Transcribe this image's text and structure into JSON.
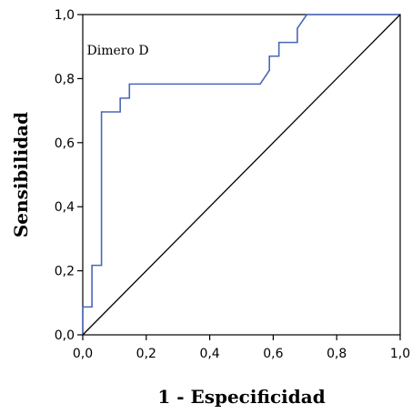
{
  "chart_data": {
    "type": "line",
    "title": "",
    "xlabel": "1 - Especificidad",
    "ylabel": "Sensibilidad",
    "xlim": [
      0,
      1
    ],
    "ylim": [
      0,
      1
    ],
    "x_ticks": [
      "0,0",
      "0,2",
      "0,4",
      "0,6",
      "0,8",
      "1,0"
    ],
    "y_ticks": [
      "0,0",
      "0,2",
      "0,4",
      "0,6",
      "0,8",
      "1,0"
    ],
    "x_tick_values": [
      0,
      0.2,
      0.4,
      0.6,
      0.8,
      1.0
    ],
    "y_tick_values": [
      0,
      0.2,
      0.4,
      0.6,
      0.8,
      1.0
    ],
    "grid": false,
    "legend": "none",
    "annotation": "Dimero D",
    "series": [
      {
        "name": "Dimero D",
        "color": "#4a67b8",
        "step": true,
        "x": [
          0.0,
          0.0,
          0.029,
          0.029,
          0.059,
          0.059,
          0.118,
          0.118,
          0.147,
          0.147,
          0.559,
          0.588,
          0.588,
          0.618,
          0.618,
          0.676,
          0.676,
          0.706,
          1.0
        ],
        "y": [
          0.0,
          0.087,
          0.087,
          0.217,
          0.217,
          0.696,
          0.696,
          0.739,
          0.739,
          0.783,
          0.783,
          0.826,
          0.87,
          0.87,
          0.913,
          0.913,
          0.957,
          1.0,
          1.0
        ]
      },
      {
        "name": "",
        "color": "#000000",
        "step": false,
        "x": [
          0,
          1
        ],
        "y": [
          0,
          1
        ]
      }
    ]
  }
}
